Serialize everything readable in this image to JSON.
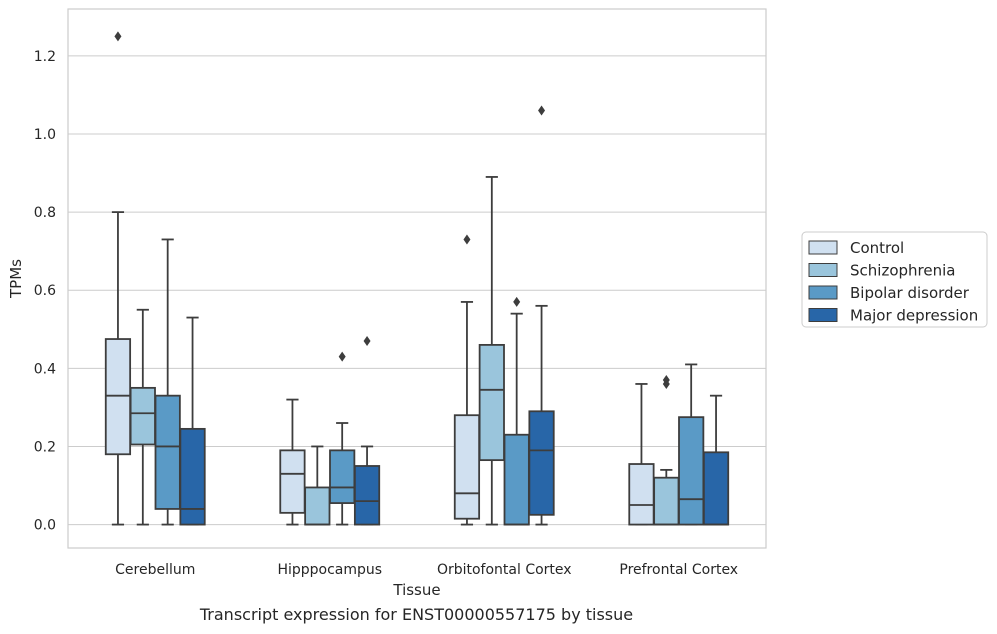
{
  "caption": "Transcript expression for ENST00000557175 by tissue",
  "chart_data": {
    "type": "box",
    "xlabel": "Tissue",
    "ylabel": "TPMs",
    "ylim": [
      -0.06,
      1.32
    ],
    "yticks": [
      0.0,
      0.2,
      0.4,
      0.6,
      0.8,
      1.0,
      1.2
    ],
    "ytick_labels": [
      "0.0",
      "0.2",
      "0.4",
      "0.6",
      "0.8",
      "1.0",
      "1.2"
    ],
    "grid": "horizontal",
    "legend_position": "right",
    "categories": [
      "Cerebellum",
      "Hipppocampus",
      "Orbitofontal Cortex",
      "Prefrontal Cortex"
    ],
    "series": [
      {
        "name": "Control",
        "color": "#d0e0f0",
        "boxes": [
          {
            "whislo": 0.0,
            "q1": 0.18,
            "med": 0.33,
            "q3": 0.475,
            "whishi": 0.8,
            "fliers": [
              1.25
            ]
          },
          {
            "whislo": 0.0,
            "q1": 0.03,
            "med": 0.13,
            "q3": 0.19,
            "whishi": 0.32,
            "fliers": []
          },
          {
            "whislo": 0.0,
            "q1": 0.015,
            "med": 0.08,
            "q3": 0.28,
            "whishi": 0.57,
            "fliers": [
              0.73
            ]
          },
          {
            "whislo": 0.0,
            "q1": 0.0,
            "med": 0.05,
            "q3": 0.155,
            "whishi": 0.36,
            "fliers": []
          }
        ]
      },
      {
        "name": "Schizophrenia",
        "color": "#9ac5dc",
        "boxes": [
          {
            "whislo": 0.0,
            "q1": 0.205,
            "med": 0.285,
            "q3": 0.35,
            "whishi": 0.55,
            "fliers": []
          },
          {
            "whislo": 0.0,
            "q1": 0.0,
            "med": 0.0,
            "q3": 0.095,
            "whishi": 0.2,
            "fliers": []
          },
          {
            "whislo": 0.0,
            "q1": 0.165,
            "med": 0.345,
            "q3": 0.46,
            "whishi": 0.89,
            "fliers": []
          },
          {
            "whislo": 0.0,
            "q1": 0.0,
            "med": 0.0,
            "q3": 0.12,
            "whishi": 0.14,
            "fliers": [
              0.36,
              0.37
            ]
          }
        ]
      },
      {
        "name": "Bipolar disorder",
        "color": "#5a9ac6",
        "boxes": [
          {
            "whislo": 0.0,
            "q1": 0.04,
            "med": 0.2,
            "q3": 0.33,
            "whishi": 0.73,
            "fliers": []
          },
          {
            "whislo": 0.0,
            "q1": 0.055,
            "med": 0.095,
            "q3": 0.19,
            "whishi": 0.26,
            "fliers": [
              0.43
            ]
          },
          {
            "whislo": 0.0,
            "q1": 0.0,
            "med": 0.0,
            "q3": 0.23,
            "whishi": 0.54,
            "fliers": [
              0.57
            ]
          },
          {
            "whislo": 0.0,
            "q1": 0.0,
            "med": 0.065,
            "q3": 0.275,
            "whishi": 0.41,
            "fliers": []
          }
        ]
      },
      {
        "name": "Major depression",
        "color": "#2866a8",
        "boxes": [
          {
            "whislo": 0.0,
            "q1": 0.0,
            "med": 0.04,
            "q3": 0.245,
            "whishi": 0.53,
            "fliers": []
          },
          {
            "whislo": 0.0,
            "q1": 0.0,
            "med": 0.06,
            "q3": 0.15,
            "whishi": 0.2,
            "fliers": [
              0.47
            ]
          },
          {
            "whislo": 0.0,
            "q1": 0.025,
            "med": 0.19,
            "q3": 0.29,
            "whishi": 0.56,
            "fliers": [
              1.06
            ]
          },
          {
            "whislo": 0.0,
            "q1": 0.0,
            "med": 0.0,
            "q3": 0.185,
            "whishi": 0.33,
            "fliers": []
          }
        ]
      }
    ]
  }
}
